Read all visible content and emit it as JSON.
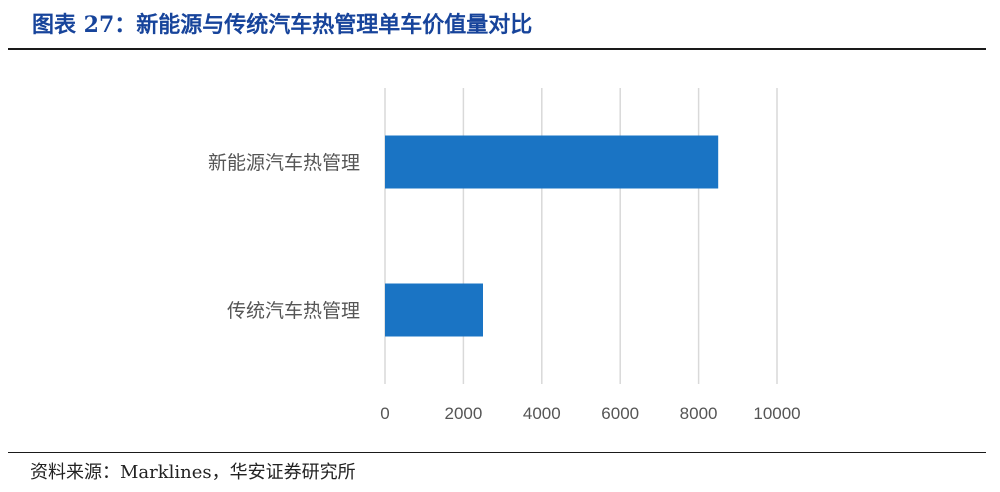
{
  "header": {
    "title": "图表 27：新能源与传统汽车热管理单车价值量对比"
  },
  "footer": {
    "source": "资料来源：Marklines，华安证券研究所"
  },
  "colors": {
    "bar": "#1a74c4",
    "grid": "#d9d9d9",
    "title": "#17449b"
  },
  "chart_data": {
    "type": "bar",
    "orientation": "horizontal",
    "title": "",
    "xlabel": "",
    "ylabel": "",
    "categories": [
      "新能源汽车热管理",
      "传统汽车热管理"
    ],
    "values": [
      8500,
      2500
    ],
    "xlim": [
      0,
      10000
    ],
    "xticks": [
      "0",
      "2000",
      "4000",
      "6000",
      "8000",
      "10000"
    ],
    "grid": true,
    "legend": "none"
  }
}
